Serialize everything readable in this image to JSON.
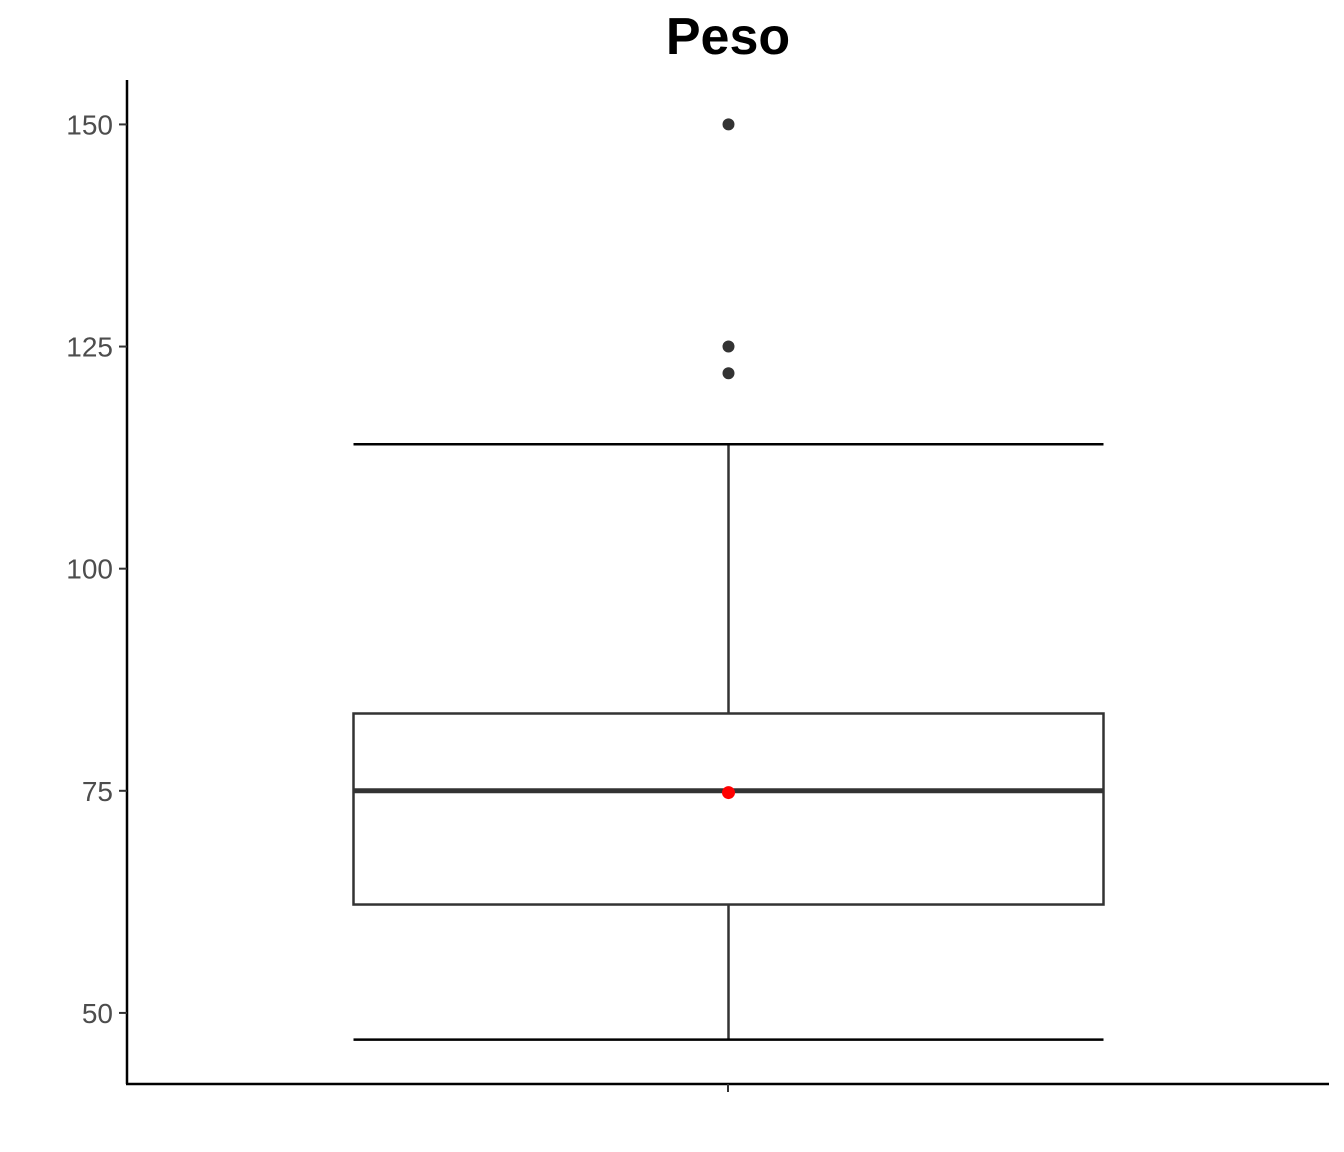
{
  "chart_data": {
    "type": "box",
    "title": "Peso",
    "xlabel": "",
    "ylabel": "",
    "ylim": [
      42,
      155
    ],
    "yticks": [
      {
        "value": 50,
        "label": "50"
      },
      {
        "value": 75,
        "label": "75"
      },
      {
        "value": 100,
        "label": "100"
      },
      {
        "value": 125,
        "label": "125"
      },
      {
        "value": 150,
        "label": "150"
      }
    ],
    "grid": false,
    "legend": "none",
    "boxes": [
      {
        "whisker_low": 47,
        "q1": 62.2,
        "median": 75,
        "q3": 83.7,
        "whisker_high": 114,
        "mean": 74.8,
        "outliers": [
          122,
          125,
          150
        ]
      }
    ],
    "colors": {
      "box_outline": "#333333",
      "whisker": "#000000",
      "outlier": "#333333",
      "mean_point": "#ff0000",
      "axis": "#000000",
      "tick_label": "#4d4d4d"
    }
  }
}
